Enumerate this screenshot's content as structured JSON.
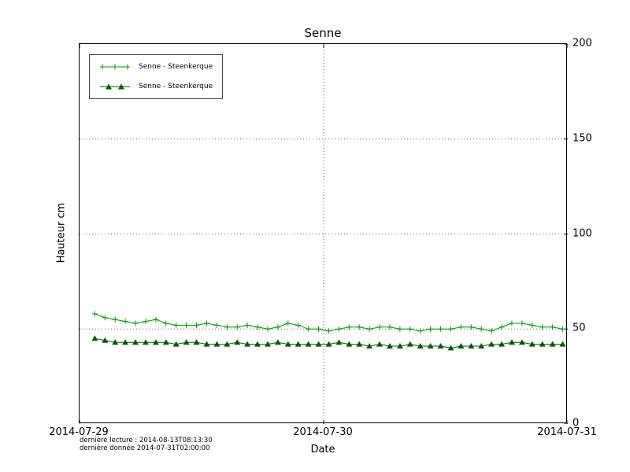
{
  "chart_data": {
    "type": "line",
    "title": "Senne",
    "xlabel": "Date",
    "ylabel": "Hauteur cm",
    "xlim": [
      0,
      48
    ],
    "ylim": [
      0,
      200
    ],
    "grid": {
      "x": [
        24
      ],
      "y": [
        50,
        100,
        150
      ]
    },
    "legend_position": "top-left",
    "xticks": [
      {
        "v": 0,
        "label": "2014-07-29"
      },
      {
        "v": 24,
        "label": "2014-07-30"
      },
      {
        "v": 48,
        "label": "2014-07-31"
      }
    ],
    "yticks": [
      {
        "v": 0,
        "label": "0"
      },
      {
        "v": 50,
        "label": "50"
      },
      {
        "v": 100,
        "label": "100"
      },
      {
        "v": 150,
        "label": "150"
      },
      {
        "v": 200,
        "label": "200"
      }
    ],
    "x": [
      1.5,
      2.5,
      3.5,
      4.5,
      5.5,
      6.5,
      7.5,
      8.5,
      9.5,
      10.5,
      11.5,
      12.5,
      13.5,
      14.5,
      15.5,
      16.5,
      17.5,
      18.5,
      19.5,
      20.5,
      21.5,
      22.5,
      23.5,
      24.5,
      25.5,
      26.5,
      27.5,
      28.5,
      29.5,
      30.5,
      31.5,
      32.5,
      33.5,
      34.5,
      35.5,
      36.5,
      37.5,
      38.5,
      39.5,
      40.5,
      41.5,
      42.5,
      43.5,
      44.5,
      45.5,
      46.5,
      47.5
    ],
    "series": [
      {
        "name": "Senne - Steenkerque",
        "marker": "plus",
        "color": "#009900",
        "values": [
          58,
          56,
          55,
          54,
          53,
          54,
          55,
          53,
          52,
          52,
          52,
          53,
          52,
          51,
          51,
          52,
          51,
          50,
          51,
          53,
          52,
          50,
          50,
          49,
          50,
          51,
          51,
          50,
          51,
          51,
          50,
          50,
          49,
          50,
          50,
          50,
          51,
          51,
          50,
          49,
          51,
          53,
          53,
          52,
          51,
          51,
          50
        ]
      },
      {
        "name": "Senne - Steenkerque",
        "marker": "triangle",
        "color": "#005c00",
        "values": [
          45,
          44,
          43,
          43,
          43,
          43,
          43,
          43,
          42,
          43,
          43,
          42,
          42,
          42,
          43,
          42,
          42,
          42,
          43,
          42,
          42,
          42,
          42,
          42,
          43,
          42,
          42,
          41,
          42,
          41,
          41,
          42,
          41,
          41,
          41,
          40,
          41,
          41,
          41,
          42,
          42,
          43,
          43,
          42,
          42,
          42,
          42
        ]
      }
    ]
  },
  "footnote": {
    "line1": "dernière lecture : 2014-08-13T08:13:30",
    "line2": "dernière donnée  2014-07-31T02:00:00"
  }
}
